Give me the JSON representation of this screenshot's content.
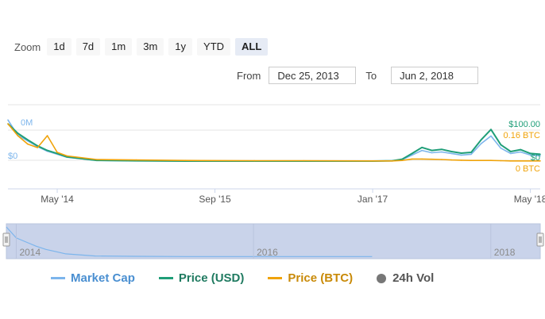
{
  "zoom": {
    "label": "Zoom",
    "buttons": [
      "1d",
      "7d",
      "1m",
      "3m",
      "1y",
      "YTD",
      "ALL"
    ],
    "active": "ALL"
  },
  "range": {
    "from_label": "From",
    "from_value": "Dec 25, 2013",
    "to_label": "To",
    "to_value": "Jun 2, 2018"
  },
  "colors": {
    "market_cap": "#7cb5ec",
    "price_usd": "#1f9e78",
    "price_btc": "#f0a30a",
    "volume": "#888888",
    "grid": "#e6e6e6",
    "navigator_mask": "#c9d3ea"
  },
  "chart_data": {
    "type": "line",
    "x_tick_labels": [
      "May '14",
      "Sep '15",
      "Jan '17",
      "May '18"
    ],
    "left_axis_labels": [
      "0M",
      "$0"
    ],
    "right_axis_usd_labels": [
      "$100.00",
      "$0"
    ],
    "right_axis_btc_labels": [
      "0.16 BTC",
      "0 BTC"
    ],
    "x": [
      "2013-12",
      "2014-01",
      "2014-02",
      "2014-03",
      "2014-04",
      "2014-05",
      "2014-06",
      "2014-09",
      "2015-01",
      "2015-06",
      "2016-01",
      "2016-06",
      "2017-01",
      "2017-03",
      "2017-04",
      "2017-05",
      "2017-06",
      "2017-07",
      "2017-08",
      "2017-09",
      "2017-10",
      "2017-11",
      "2017-12",
      "2018-01",
      "2018-02",
      "2018-03",
      "2018-04",
      "2018-05",
      "2018-06"
    ],
    "series": [
      {
        "name": "Market Cap",
        "axis": "usd",
        "values": [
          110,
          70,
          55,
          40,
          28,
          20,
          12,
          4,
          3,
          2,
          2,
          2,
          2,
          3,
          6,
          18,
          30,
          24,
          26,
          22,
          18,
          20,
          48,
          68,
          36,
          22,
          26,
          18,
          16
        ]
      },
      {
        "name": "Price (USD)",
        "axis": "usd",
        "values": [
          100,
          75,
          58,
          42,
          30,
          22,
          13,
          4,
          3,
          2,
          2,
          2,
          2,
          3,
          7,
          22,
          38,
          30,
          33,
          27,
          23,
          25,
          58,
          85,
          45,
          27,
          32,
          22,
          20
        ]
      },
      {
        "name": "Price (BTC)",
        "axis": "btc",
        "values": [
          0.16,
          0.11,
          0.075,
          0.06,
          0.11,
          0.04,
          0.025,
          0.01,
          0.008,
          0.006,
          0.005,
          0.005,
          0.004,
          0.004,
          0.006,
          0.012,
          0.012,
          0.011,
          0.01,
          0.008,
          0.007,
          0.006,
          0.006,
          0.006,
          0.005,
          0.004,
          0.004,
          0.004,
          0.004
        ]
      }
    ],
    "navigator_labels": [
      "2014",
      "2016",
      "2018"
    ],
    "legend": [
      "Market Cap",
      "Price (USD)",
      "Price (BTC)",
      "24h Vol"
    ],
    "legend_position": "bottom",
    "grid": true,
    "ylim_usd": [
      0,
      100
    ],
    "ylim_btc": [
      0,
      0.16
    ]
  }
}
